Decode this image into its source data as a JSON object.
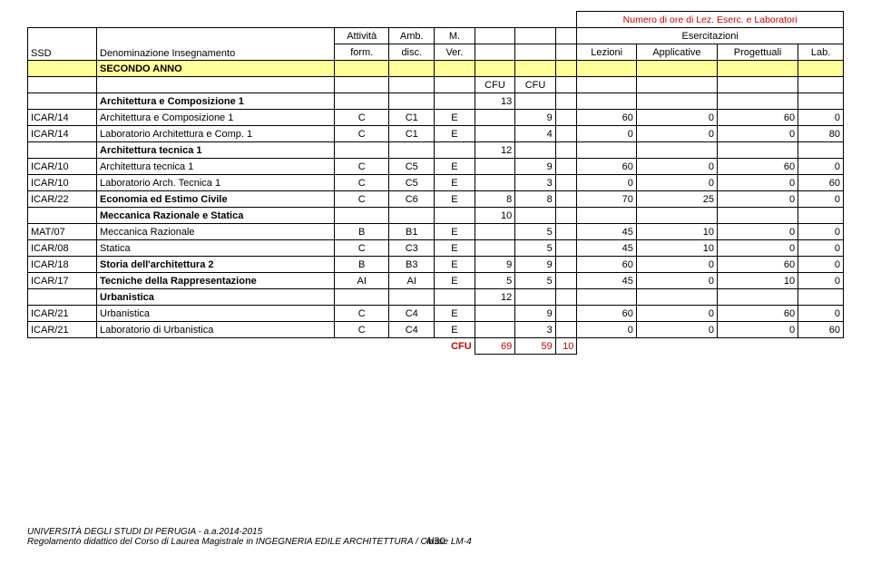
{
  "top_header": {
    "line1": "Numero di ore di Lez. Eserc. e Laboratori",
    "esercitazioni": "Esercitazioni"
  },
  "headers": {
    "ssd": "SSD",
    "denom": "Denominazione Insegnamento",
    "att": "Attività form.",
    "amb": "Amb. disc.",
    "mver": "M. Ver.",
    "cfu": "CFU",
    "lezioni": "Lezioni",
    "applicative": "Applicative",
    "progettuali": "Progettuali",
    "lab": "Lab."
  },
  "secondo": "SECONDO ANNO",
  "rows": [
    {
      "ssd": "",
      "denom": "Architettura e Composizione 1",
      "att": "",
      "amb": "",
      "mver": "",
      "c1": "13",
      "c2": "",
      "lez": "",
      "app": "",
      "prog": "",
      "lab": "",
      "bold": true
    },
    {
      "ssd": "ICAR/14",
      "denom": "Architettura e Composizione 1",
      "att": "C",
      "amb": "C1",
      "mver": "E",
      "c1": "",
      "c2": "9",
      "lez": "60",
      "app": "0",
      "prog": "60",
      "lab": "0",
      "bold": false
    },
    {
      "ssd": "ICAR/14",
      "denom": "Laboratorio Architettura e Comp. 1",
      "att": "C",
      "amb": "C1",
      "mver": "E",
      "c1": "",
      "c2": "4",
      "lez": "0",
      "app": "0",
      "prog": "0",
      "lab": "80",
      "bold": false
    },
    {
      "ssd": "",
      "denom": "Architettura tecnica 1",
      "att": "",
      "amb": "",
      "mver": "",
      "c1": "12",
      "c2": "",
      "lez": "",
      "app": "",
      "prog": "",
      "lab": "",
      "bold": true
    },
    {
      "ssd": "ICAR/10",
      "denom": "Architettura tecnica 1",
      "att": "C",
      "amb": "C5",
      "mver": "E",
      "c1": "",
      "c2": "9",
      "lez": "60",
      "app": "0",
      "prog": "60",
      "lab": "0",
      "bold": false
    },
    {
      "ssd": "ICAR/10",
      "denom": "Laboratorio Arch. Tecnica 1",
      "att": "C",
      "amb": "C5",
      "mver": "E",
      "c1": "",
      "c2": "3",
      "lez": "0",
      "app": "0",
      "prog": "0",
      "lab": "60",
      "bold": false
    },
    {
      "ssd": "ICAR/22",
      "denom": "Economia ed Estimo Civile",
      "att": "C",
      "amb": "C6",
      "mver": "E",
      "c1": "8",
      "c2": "8",
      "lez": "70",
      "app": "25",
      "prog": "0",
      "lab": "0",
      "bold": true
    },
    {
      "ssd": "",
      "denom": "Meccanica Razionale e Statica",
      "att": "",
      "amb": "",
      "mver": "",
      "c1": "10",
      "c2": "",
      "lez": "",
      "app": "",
      "prog": "",
      "lab": "",
      "bold": true
    },
    {
      "ssd": "MAT/07",
      "denom": "Meccanica Razionale",
      "att": "B",
      "amb": "B1",
      "mver": "E",
      "c1": "",
      "c2": "5",
      "lez": "45",
      "app": "10",
      "prog": "0",
      "lab": "0",
      "bold": false
    },
    {
      "ssd": "ICAR/08",
      "denom": "Statica",
      "att": "C",
      "amb": "C3",
      "mver": "E",
      "c1": "",
      "c2": "5",
      "lez": "45",
      "app": "10",
      "prog": "0",
      "lab": "0",
      "bold": false
    },
    {
      "ssd": "ICAR/18",
      "denom": "Storia dell'architettura 2",
      "att": "B",
      "amb": "B3",
      "mver": "E",
      "c1": "9",
      "c2": "9",
      "lez": "60",
      "app": "0",
      "prog": "60",
      "lab": "0",
      "bold": true
    },
    {
      "ssd": "ICAR/17",
      "denom": "Tecniche della Rappresentazione",
      "att": "AI",
      "amb": "AI",
      "mver": "E",
      "c1": "5",
      "c2": "5",
      "lez": "45",
      "app": "0",
      "prog": "10",
      "lab": "0",
      "bold": true
    },
    {
      "ssd": "",
      "denom": "Urbanistica",
      "att": "",
      "amb": "",
      "mver": "",
      "c1": "12",
      "c2": "",
      "lez": "",
      "app": "",
      "prog": "",
      "lab": "",
      "bold": true
    },
    {
      "ssd": "ICAR/21",
      "denom": "Urbanistica",
      "att": "C",
      "amb": "C4",
      "mver": "E",
      "c1": "",
      "c2": "9",
      "lez": "60",
      "app": "0",
      "prog": "60",
      "lab": "0",
      "bold": false
    },
    {
      "ssd": "ICAR/21",
      "denom": "Laboratorio di Urbanistica",
      "att": "C",
      "amb": "C4",
      "mver": "E",
      "c1": "",
      "c2": "3",
      "lez": "0",
      "app": "0",
      "prog": "0",
      "lab": "60",
      "bold": false
    }
  ],
  "totals": {
    "label": "CFU",
    "c1": "69",
    "c2": "59",
    "sp": "10"
  },
  "footer": {
    "line1": "UNIVERSITÀ DEGLI STUDI DI PERUGIA - a.a.2014-2015",
    "line2": "Regolamento didattico del Corso di Laurea Magistrale in INGEGNERIA EDILE ARCHITETTURA / Classe LM-4"
  },
  "page": "4/30"
}
